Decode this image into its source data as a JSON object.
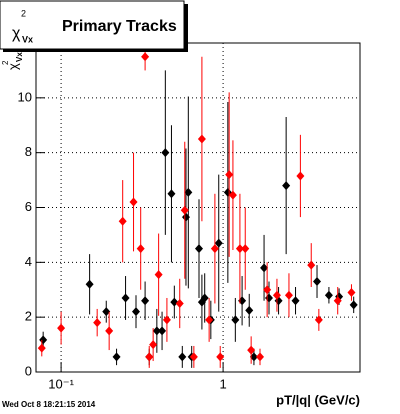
{
  "chart_data": {
    "type": "scatter",
    "title": "Primary Tracks",
    "symbol": "χ",
    "symbol_sup": "2",
    "symbol_sub": "Vx",
    "x_label": "pT/|q| (GeV/c)",
    "footer": "Wed Oct  8 18:21:15 2014",
    "log_x": true,
    "grid": true,
    "xlim": [
      0.07,
      7
    ],
    "ylim": [
      0,
      12
    ],
    "xticks": [
      {
        "value": 0.1,
        "label": "10⁻¹"
      },
      1
    ],
    "yticks": [
      0,
      2,
      4,
      6,
      8,
      10
    ],
    "series": [
      {
        "name": "black",
        "color": "#000000",
        "x": [
          0.0775,
          0.15,
          0.19,
          0.22,
          0.25,
          0.29,
          0.33,
          0.35,
          0.39,
          0.42,
          0.44,
          0.48,
          0.5,
          0.56,
          0.59,
          0.61,
          0.64,
          0.71,
          0.74,
          0.77,
          0.84,
          0.94,
          1.07,
          1.19,
          1.31,
          1.45,
          1.55,
          1.79,
          1.92,
          2.2,
          2.45,
          2.8,
          3.8,
          4.5,
          5.2,
          6.4
        ],
        "values": [
          1.17,
          3.2,
          2.2,
          0.55,
          2.7,
          2.2,
          2.6,
          0.55,
          1.5,
          1.5,
          8.0,
          6.5,
          2.55,
          0.55,
          5.65,
          6.55,
          0.55,
          4.5,
          2.55,
          2.7,
          1.9,
          4.7,
          6.55,
          1.9,
          2.6,
          2.25,
          0.55,
          3.8,
          2.7,
          2.6,
          6.8,
          2.6,
          3.3,
          2.8,
          2.75,
          2.45
        ],
        "errors": [
          0.3,
          1.1,
          0.4,
          0.3,
          0.8,
          0.6,
          0.7,
          0.3,
          0.8,
          0.7,
          3.0,
          2.5,
          0.6,
          0.4,
          2.5,
          3.5,
          0.4,
          1.8,
          1.0,
          0.9,
          0.7,
          2.5,
          3.3,
          0.8,
          0.9,
          0.6,
          0.3,
          1.2,
          0.6,
          0.5,
          2.5,
          0.5,
          0.6,
          0.3,
          0.3,
          0.3
        ]
      },
      {
        "name": "red",
        "color": "#ff0000",
        "x": [
          0.076,
          0.1,
          0.167,
          0.198,
          0.24,
          0.28,
          0.31,
          0.33,
          0.35,
          0.37,
          0.4,
          0.45,
          0.54,
          0.58,
          0.66,
          0.74,
          0.82,
          0.89,
          0.96,
          1.09,
          1.15,
          1.27,
          1.37,
          1.49,
          1.69,
          1.87,
          2.15,
          2.55,
          3.0,
          3.5,
          3.9,
          5.1,
          6.2
        ],
        "values": [
          0.87,
          1.6,
          1.8,
          1.5,
          5.5,
          6.2,
          4.5,
          11.5,
          0.55,
          1.0,
          3.55,
          1.9,
          2.5,
          5.9,
          0.55,
          8.5,
          1.9,
          4.5,
          0.55,
          7.2,
          6.45,
          4.5,
          4.5,
          0.8,
          0.55,
          3.0,
          2.8,
          2.8,
          7.15,
          3.9,
          1.9,
          2.6,
          2.9
        ],
        "errors": [
          0.3,
          0.6,
          0.5,
          0.7,
          1.5,
          1.8,
          1.5,
          0.5,
          0.4,
          0.6,
          1.5,
          0.8,
          0.9,
          2.5,
          0.4,
          3.0,
          0.8,
          2.0,
          0.4,
          3.0,
          2.0,
          2.0,
          1.5,
          0.5,
          0.3,
          1.0,
          0.6,
          0.8,
          1.5,
          0.8,
          0.4,
          0.5,
          0.3
        ]
      }
    ]
  }
}
